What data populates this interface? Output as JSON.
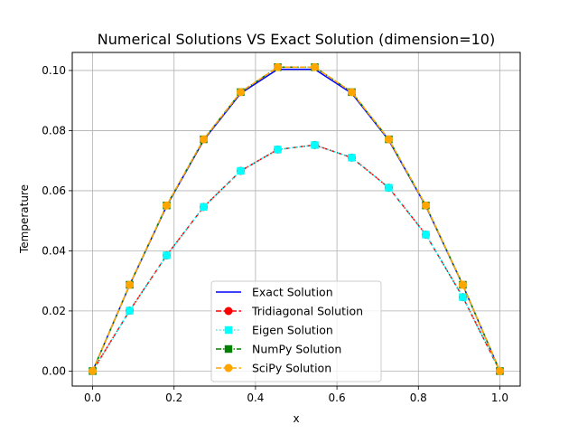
{
  "chart_data": {
    "type": "line",
    "title": "Numerical Solutions VS Exact Solution (dimension=10)",
    "xlabel": "x",
    "ylabel": "Temperature",
    "xlim": [
      -0.05,
      1.05
    ],
    "ylim": [
      -0.005,
      0.106
    ],
    "x_ticks": [
      0.0,
      0.2,
      0.4,
      0.6,
      0.8,
      1.0
    ],
    "x_tick_labels": [
      "0.0",
      "0.2",
      "0.4",
      "0.6",
      "0.8",
      "1.0"
    ],
    "y_ticks": [
      0.0,
      0.02,
      0.04,
      0.06,
      0.08,
      0.1
    ],
    "y_tick_labels": [
      "0.00",
      "0.02",
      "0.04",
      "0.06",
      "0.08",
      "0.10"
    ],
    "grid": true,
    "legend_position": "lower-center",
    "x": [
      0.0,
      0.0909,
      0.1818,
      0.2727,
      0.3636,
      0.4545,
      0.5455,
      0.6364,
      0.7273,
      0.8182,
      0.9091,
      1.0
    ],
    "series": [
      {
        "name": "Exact Solution",
        "color": "#0000ff",
        "line_style": "solid",
        "marker": "none",
        "values": [
          0.0,
          0.0286,
          0.0549,
          0.0768,
          0.0924,
          0.1004,
          0.1004,
          0.0924,
          0.0768,
          0.0549,
          0.0286,
          0.0
        ]
      },
      {
        "name": "Tridiagonal Solution",
        "color": "#ff0000",
        "line_style": "dashed",
        "marker": "circle",
        "values": [
          0.0,
          0.0201,
          0.0385,
          0.0546,
          0.0666,
          0.0737,
          0.0752,
          0.071,
          0.061,
          0.0454,
          0.0246,
          0.0
        ]
      },
      {
        "name": "Eigen Solution",
        "color": "#00ffff",
        "line_style": "dotted",
        "marker": "square",
        "values": [
          0.0,
          0.0201,
          0.0385,
          0.0546,
          0.0666,
          0.0737,
          0.0752,
          0.071,
          0.061,
          0.0454,
          0.0246,
          0.0
        ]
      },
      {
        "name": "NumPy Solution",
        "color": "#008000",
        "line_style": "dashdot",
        "marker": "square",
        "values": [
          0.0,
          0.0287,
          0.0551,
          0.0771,
          0.0928,
          0.1011,
          0.1011,
          0.0928,
          0.0771,
          0.0551,
          0.0287,
          0.0
        ]
      },
      {
        "name": "SciPy Solution",
        "color": "#ffa500",
        "line_style": "dashed",
        "marker": "circle",
        "values": [
          0.0,
          0.0287,
          0.0551,
          0.0771,
          0.0928,
          0.1011,
          0.1011,
          0.0928,
          0.0771,
          0.0551,
          0.0287,
          0.0
        ]
      }
    ]
  }
}
